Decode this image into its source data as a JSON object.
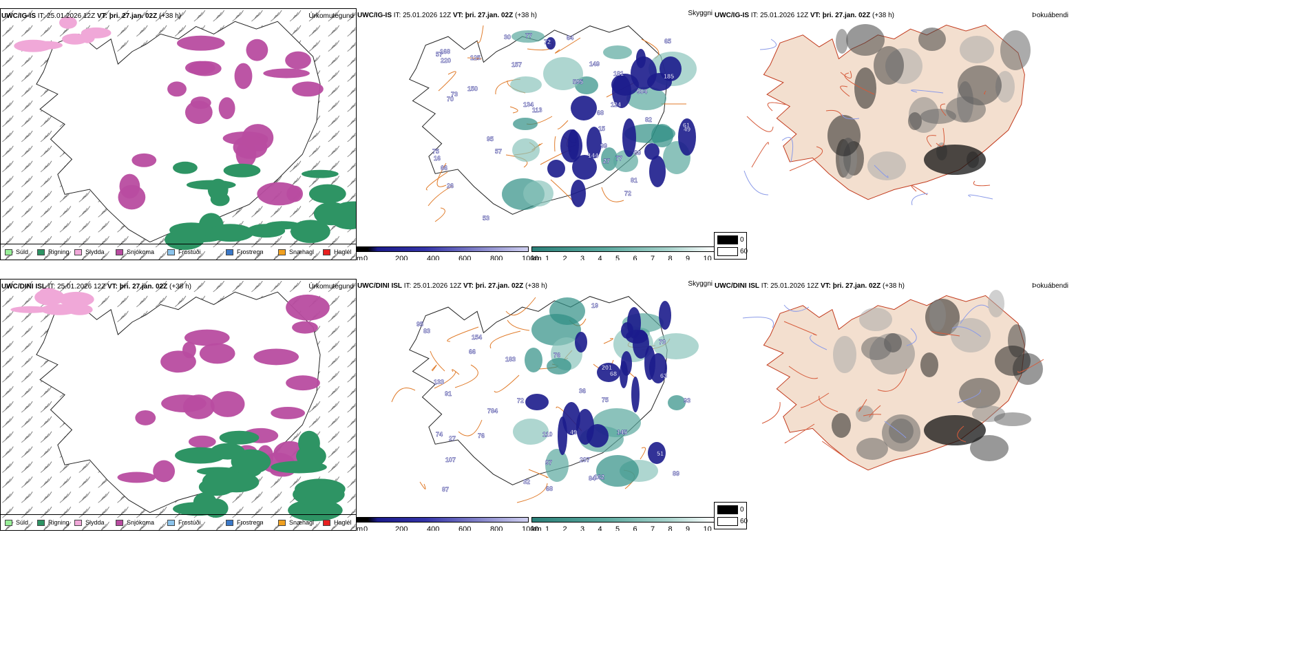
{
  "rows": [
    {
      "model": "UWC/IG-IS",
      "header_it_label": "IT:",
      "header_it": "25.01.2026 12Z",
      "header_vt_label": "VT:",
      "header_vt": "þri. 27.jan. 02Z",
      "header_lead": "(+38 h)",
      "precip_title": "Úrkomutegund",
      "cloud_title": "Skyggni",
      "fog_title": "Þokuábendi",
      "precip_labels": [
        "Súld",
        "Rigning",
        "Slydda",
        "Snjókoma",
        "Frostúði",
        "Frostregn",
        "Snæhagl",
        "Haglél"
      ],
      "cloud_labels": [
        "27",
        "16",
        "168",
        "30",
        "57",
        "82",
        "77",
        "144",
        "65",
        "53",
        "75",
        "149",
        "150",
        "124",
        "157",
        "595",
        "185",
        "134",
        "181",
        "49",
        "220",
        "61",
        "95",
        "81",
        "68",
        "66",
        "89",
        "70",
        "904",
        "72",
        "99",
        "77",
        "73",
        "15",
        "125",
        "26",
        "113",
        "64",
        "72",
        "57"
      ]
    },
    {
      "model": "UWC/DINI ISL",
      "header_it_label": "IT:",
      "header_it": "25.01.2026 12Z",
      "header_vt_label": "VT:",
      "header_vt": "þri. 27.jan. 02Z",
      "header_lead": "(+38 h)",
      "precip_title": "Úrkomutegund",
      "cloud_title": "Skyggni",
      "fog_title": "Þokuábendi",
      "precip_labels": [
        "Súld",
        "Rigning",
        "Slydda",
        "Snjókoma",
        "Frostúði",
        "Frostregn",
        "Snæhagl",
        "Haglél"
      ],
      "cloud_labels": [
        "27",
        "97",
        "19",
        "63",
        "110",
        "183",
        "162",
        "73",
        "49",
        "145",
        "74",
        "75",
        "68",
        "72",
        "95",
        "154",
        "87",
        "51",
        "784",
        "36",
        "84",
        "93",
        "66",
        "297",
        "201",
        "76",
        "107",
        "68",
        "83",
        "76",
        "32",
        "89",
        "91",
        "133"
      ]
    }
  ],
  "precip_colors": [
    "#98ee98",
    "#2e9464",
    "#f0a8d8",
    "#b84ca0",
    "#8cc4ec",
    "#3a78c8",
    "#f0a020",
    "#e82020"
  ],
  "cbar": {
    "m_unit": "m",
    "m_ticks": [
      "0",
      "200",
      "400",
      "600",
      "800",
      "1000"
    ],
    "km_unit": "km",
    "km_ticks": [
      "1",
      "2",
      "3",
      "4",
      "5",
      "6",
      "7",
      "8",
      "9",
      "10"
    ]
  },
  "fog_legend": {
    "black": "0",
    "white": "60"
  }
}
